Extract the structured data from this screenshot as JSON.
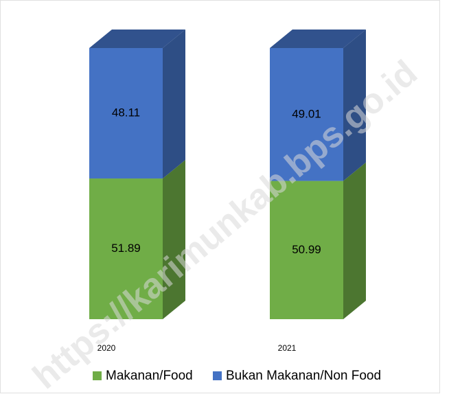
{
  "chart_data": {
    "type": "bar3d_stacked",
    "categories": [
      "2020",
      "2021"
    ],
    "series": [
      {
        "name": "Makanan/Food",
        "color": "#70ad47",
        "values": [
          51.89,
          50.99
        ]
      },
      {
        "name": "Bukan Makanan/Non Food",
        "color": "#4472c4",
        "values": [
          48.11,
          49.01
        ]
      }
    ],
    "legend": "bottom",
    "watermark": "https://karimunkab.bps.go.id"
  }
}
